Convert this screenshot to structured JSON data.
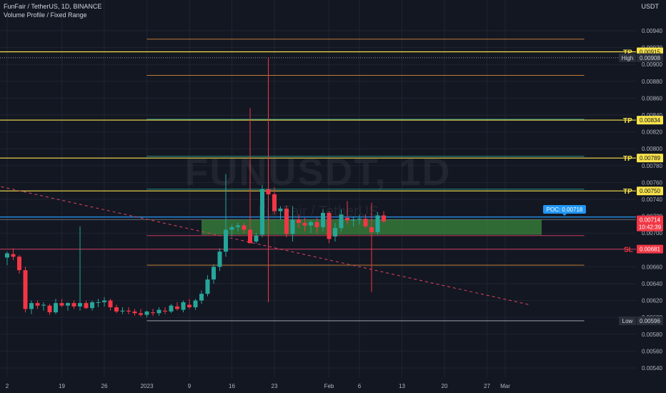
{
  "header": {
    "symbol_line": "FunFair / TetherUS, 1D, BINANCE",
    "indicator_line": "Volume Profile / Fixed Range"
  },
  "watermark": {
    "ticker": "FUNUSDT, 1D",
    "name": "FunFair / TetherUS"
  },
  "price_axis": {
    "unit_label": "USDT",
    "ticks": [
      "0.00940",
      "0.00920",
      "0.00900",
      "0.00880",
      "0.00860",
      "0.00840",
      "0.00820",
      "0.00800",
      "0.00780",
      "0.00760",
      "0.00740",
      "0.00720",
      "0.00700",
      "0.00680",
      "0.00660",
      "0.00640",
      "0.00620",
      "0.00600",
      "0.00580",
      "0.00560",
      "0.00540"
    ]
  },
  "time_axis": {
    "ticks": [
      {
        "label": "2",
        "bar": 0
      },
      {
        "label": "19",
        "bar": 9
      },
      {
        "label": "26",
        "bar": 16
      },
      {
        "label": "2023",
        "bar": 23
      },
      {
        "label": "9",
        "bar": 30
      },
      {
        "label": "16",
        "bar": 37
      },
      {
        "label": "23",
        "bar": 44
      },
      {
        "label": "Feb",
        "bar": 53
      },
      {
        "label": "6",
        "bar": 58
      },
      {
        "label": "13",
        "bar": 65
      },
      {
        "label": "20",
        "bar": 72
      },
      {
        "label": "27",
        "bar": 79
      },
      {
        "label": "Mar",
        "bar": 82
      }
    ]
  },
  "colors": {
    "bull": "#26a69a",
    "bear": "#f23645",
    "tp_line": "#f7e24b",
    "teal_line": "#2a9d8f",
    "orange_line": "#d88a3a",
    "sl_line": "#c2385a",
    "blue_line": "#2196f3",
    "trendline": "#e0445f",
    "value_area": "#3c8f3c",
    "grid": "#1f2433",
    "background": "#131722"
  },
  "markers": {
    "tp1": {
      "label": "TP",
      "value": "0.00915"
    },
    "tp2": {
      "label": "TP",
      "value": "0.00834"
    },
    "tp3": {
      "label": "TP",
      "value": "0.00789"
    },
    "tp4": {
      "label": "TP",
      "value": "0.00750"
    },
    "sl": {
      "label": "SL",
      "value": "0.00681"
    },
    "high": {
      "label": "High",
      "value": "0.00908"
    },
    "low": {
      "label": "Low",
      "value": "0.00596"
    },
    "last": {
      "value": "0.00714",
      "countdown": "10:42:39"
    },
    "poc": {
      "label": "POC: 0.00718"
    }
  },
  "chart_data": {
    "type": "candlestick",
    "ylim": [
      0.0053,
      0.0095
    ],
    "y_log": false,
    "candles": [
      {
        "o": 0.00671,
        "h": 0.00678,
        "l": 0.00662,
        "c": 0.00676
      },
      {
        "o": 0.00675,
        "h": 0.00682,
        "l": 0.00668,
        "c": 0.00672
      },
      {
        "o": 0.00672,
        "h": 0.00674,
        "l": 0.00652,
        "c": 0.00656
      },
      {
        "o": 0.00656,
        "h": 0.0066,
        "l": 0.00606,
        "c": 0.0061
      },
      {
        "o": 0.0061,
        "h": 0.0062,
        "l": 0.00604,
        "c": 0.00617
      },
      {
        "o": 0.00617,
        "h": 0.0062,
        "l": 0.0061,
        "c": 0.00614
      },
      {
        "o": 0.00614,
        "h": 0.00618,
        "l": 0.00608,
        "c": 0.00615
      },
      {
        "o": 0.00614,
        "h": 0.00616,
        "l": 0.00603,
        "c": 0.00606
      },
      {
        "o": 0.00606,
        "h": 0.00622,
        "l": 0.00604,
        "c": 0.00617
      },
      {
        "o": 0.00617,
        "h": 0.00622,
        "l": 0.00612,
        "c": 0.00614
      },
      {
        "o": 0.00614,
        "h": 0.00618,
        "l": 0.00608,
        "c": 0.00617
      },
      {
        "o": 0.00617,
        "h": 0.0062,
        "l": 0.0061,
        "c": 0.00613
      },
      {
        "o": 0.00613,
        "h": 0.00708,
        "l": 0.00608,
        "c": 0.00617
      },
      {
        "o": 0.00617,
        "h": 0.0062,
        "l": 0.0061,
        "c": 0.00611
      },
      {
        "o": 0.00611,
        "h": 0.0062,
        "l": 0.00608,
        "c": 0.00618
      },
      {
        "o": 0.00618,
        "h": 0.00622,
        "l": 0.00612,
        "c": 0.00618
      },
      {
        "o": 0.00618,
        "h": 0.00624,
        "l": 0.00613,
        "c": 0.0062
      },
      {
        "o": 0.0062,
        "h": 0.00622,
        "l": 0.00608,
        "c": 0.00612
      },
      {
        "o": 0.00612,
        "h": 0.00615,
        "l": 0.00605,
        "c": 0.00607
      },
      {
        "o": 0.00607,
        "h": 0.00612,
        "l": 0.00604,
        "c": 0.00608
      },
      {
        "o": 0.00608,
        "h": 0.00612,
        "l": 0.00604,
        "c": 0.00607
      },
      {
        "o": 0.00607,
        "h": 0.0061,
        "l": 0.00602,
        "c": 0.00605
      },
      {
        "o": 0.00605,
        "h": 0.0061,
        "l": 0.00601,
        "c": 0.00603
      },
      {
        "o": 0.00603,
        "h": 0.00608,
        "l": 0.006,
        "c": 0.00607
      },
      {
        "o": 0.00606,
        "h": 0.0061,
        "l": 0.00602,
        "c": 0.00605
      },
      {
        "o": 0.00605,
        "h": 0.00612,
        "l": 0.00602,
        "c": 0.00609
      },
      {
        "o": 0.00608,
        "h": 0.00612,
        "l": 0.00604,
        "c": 0.00607
      },
      {
        "o": 0.00607,
        "h": 0.00616,
        "l": 0.00605,
        "c": 0.00614
      },
      {
        "o": 0.00613,
        "h": 0.00618,
        "l": 0.00608,
        "c": 0.0061
      },
      {
        "o": 0.00609,
        "h": 0.0062,
        "l": 0.00606,
        "c": 0.00618
      },
      {
        "o": 0.00615,
        "h": 0.00622,
        "l": 0.0061,
        "c": 0.00612
      },
      {
        "o": 0.00612,
        "h": 0.00622,
        "l": 0.00609,
        "c": 0.0062
      },
      {
        "o": 0.0062,
        "h": 0.00632,
        "l": 0.00616,
        "c": 0.00628
      },
      {
        "o": 0.00628,
        "h": 0.0065,
        "l": 0.00625,
        "c": 0.00645
      },
      {
        "o": 0.00645,
        "h": 0.00663,
        "l": 0.0064,
        "c": 0.0066
      },
      {
        "o": 0.0066,
        "h": 0.00682,
        "l": 0.00655,
        "c": 0.00678
      },
      {
        "o": 0.00678,
        "h": 0.0077,
        "l": 0.00672,
        "c": 0.00704
      },
      {
        "o": 0.00704,
        "h": 0.0071,
        "l": 0.00696,
        "c": 0.00707
      },
      {
        "o": 0.00707,
        "h": 0.00712,
        "l": 0.00702,
        "c": 0.00709
      },
      {
        "o": 0.00709,
        "h": 0.00712,
        "l": 0.007,
        "c": 0.00704
      },
      {
        "o": 0.00704,
        "h": 0.00848,
        "l": 0.00688,
        "c": 0.00688
      },
      {
        "o": 0.0069,
        "h": 0.007,
        "l": 0.00688,
        "c": 0.00697
      },
      {
        "o": 0.00698,
        "h": 0.00757,
        "l": 0.00695,
        "c": 0.00752
      },
      {
        "o": 0.00752,
        "h": 0.00908,
        "l": 0.00742,
        "c": 0.00746
      },
      {
        "o": 0.00746,
        "h": 0.00754,
        "l": 0.00722,
        "c": 0.00726
      },
      {
        "o": 0.00726,
        "h": 0.00732,
        "l": 0.00716,
        "c": 0.00729
      },
      {
        "o": 0.00729,
        "h": 0.00733,
        "l": 0.00695,
        "c": 0.00699
      },
      {
        "o": 0.00699,
        "h": 0.00732,
        "l": 0.0069,
        "c": 0.00716
      },
      {
        "o": 0.00716,
        "h": 0.00722,
        "l": 0.00706,
        "c": 0.00712
      },
      {
        "o": 0.00712,
        "h": 0.00718,
        "l": 0.00702,
        "c": 0.00709
      },
      {
        "o": 0.00709,
        "h": 0.00715,
        "l": 0.007,
        "c": 0.00713
      },
      {
        "o": 0.00713,
        "h": 0.00718,
        "l": 0.007,
        "c": 0.00707
      },
      {
        "o": 0.00707,
        "h": 0.00728,
        "l": 0.00702,
        "c": 0.00724
      },
      {
        "o": 0.00724,
        "h": 0.00726,
        "l": 0.00688,
        "c": 0.00693
      },
      {
        "o": 0.00696,
        "h": 0.00712,
        "l": 0.0069,
        "c": 0.00706
      },
      {
        "o": 0.00706,
        "h": 0.00728,
        "l": 0.00702,
        "c": 0.00722
      },
      {
        "o": 0.00718,
        "h": 0.00738,
        "l": 0.0071,
        "c": 0.00715
      },
      {
        "o": 0.00715,
        "h": 0.0072,
        "l": 0.00708,
        "c": 0.00716
      },
      {
        "o": 0.00716,
        "h": 0.00722,
        "l": 0.0071,
        "c": 0.00717
      },
      {
        "o": 0.00717,
        "h": 0.00722,
        "l": 0.00706,
        "c": 0.00708
      },
      {
        "o": 0.00707,
        "h": 0.00736,
        "l": 0.0063,
        "c": 0.00701
      },
      {
        "o": 0.00701,
        "h": 0.00725,
        "l": 0.00698,
        "c": 0.00721
      },
      {
        "o": 0.00721,
        "h": 0.00726,
        "l": 0.00712,
        "c": 0.00714
      }
    ],
    "levels": [
      {
        "price": 0.0093,
        "kind": "orange",
        "from_bar": 23
      },
      {
        "price": 0.00915,
        "kind": "tp",
        "from_bar": -1
      },
      {
        "price": 0.00908,
        "kind": "high_dotted",
        "from_bar": -1
      },
      {
        "price": 0.00887,
        "kind": "orange",
        "from_bar": 23
      },
      {
        "price": 0.00834,
        "kind": "tp",
        "from_bar": -1
      },
      {
        "price": 0.00835,
        "kind": "teal",
        "from_bar": 23
      },
      {
        "price": 0.00789,
        "kind": "tp",
        "from_bar": -1
      },
      {
        "price": 0.00791,
        "kind": "teal",
        "from_bar": 23
      },
      {
        "price": 0.0075,
        "kind": "tp",
        "from_bar": -1
      },
      {
        "price": 0.00752,
        "kind": "teal",
        "from_bar": 23
      },
      {
        "price": 0.00719,
        "kind": "blue",
        "from_bar": -1
      },
      {
        "price": 0.00716,
        "kind": "thin_white",
        "from_bar": -1
      },
      {
        "price": 0.00697,
        "kind": "sl_thin",
        "from_bar": 23
      },
      {
        "price": 0.00681,
        "kind": "sl",
        "from_bar": -1
      },
      {
        "price": 0.00662,
        "kind": "orange",
        "from_bar": 23
      },
      {
        "price": 0.00596,
        "kind": "low",
        "from_bar": 23
      }
    ],
    "value_area": {
      "from_bar": 32,
      "to_bar": 88,
      "high": 0.00716,
      "low": 0.00698
    },
    "trendline": {
      "from_bar": -1,
      "from_price": 0.00755,
      "to_bar": 86,
      "to_price": 0.00615
    },
    "volume_profile_vertical": {
      "bar": 43,
      "high": 0.00908,
      "low": 0.00618
    }
  }
}
